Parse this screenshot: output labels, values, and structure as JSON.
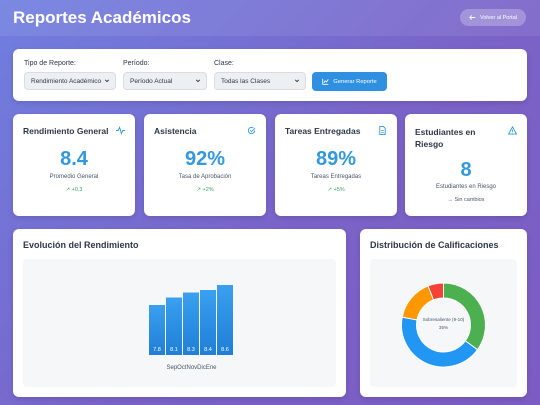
{
  "header": {
    "title": "Reportes Académicos",
    "back_label": "Volver al Portal"
  },
  "filters": {
    "report_type": {
      "label": "Tipo de Reporte:",
      "value": "Rendimiento Académico"
    },
    "period": {
      "label": "Período:",
      "value": "Período Actual"
    },
    "class": {
      "label": "Clase:",
      "value": "Todas las Clases"
    },
    "generate_label": "Generar Reporte"
  },
  "cards": [
    {
      "title": "Rendimiento General",
      "icon": "pulse-icon",
      "value": "8.4",
      "desc": "Promedio General",
      "trend": "↗ +0.3"
    },
    {
      "title": "Asistencia",
      "icon": "check-circle-icon",
      "value": "92%",
      "desc": "Tasa de Aprobación",
      "trend": "↗ +2%"
    },
    {
      "title": "Tareas Entregadas",
      "icon": "document-icon",
      "value": "89%",
      "desc": "Tareas Entregadas",
      "trend": "↗ +5%"
    },
    {
      "title": "Estudiantes en Riesgo",
      "icon": "warning-icon",
      "value": "8",
      "desc": "Estudiantes en Riesgo",
      "trend": "→ Sin cambios"
    }
  ],
  "performance": {
    "title": "Evolución del Rendimiento"
  },
  "distribution": {
    "title": "Distribución de Calificaciones",
    "center_label": "Sobresaliente (9-10)",
    "center_pct": "35%"
  },
  "colors": {
    "accent": "#3498db",
    "bar": "#2f8fe0",
    "trend_up": "#38a169"
  },
  "chart_data": [
    {
      "type": "bar",
      "categories": [
        "Sep",
        "Oct",
        "Nov",
        "Dic",
        "Ene"
      ],
      "values": [
        7.8,
        8.1,
        8.3,
        8.4,
        8.6
      ],
      "xlabel": "SepOctNovDicEne"
    },
    {
      "type": "pie",
      "slices": [
        {
          "value": 35,
          "color": "#4caf50"
        },
        {
          "value": 43,
          "color": "#2196f3"
        },
        {
          "value": 16,
          "color": "#ff9800"
        },
        {
          "value": 6,
          "color": "#f44336"
        }
      ]
    }
  ]
}
